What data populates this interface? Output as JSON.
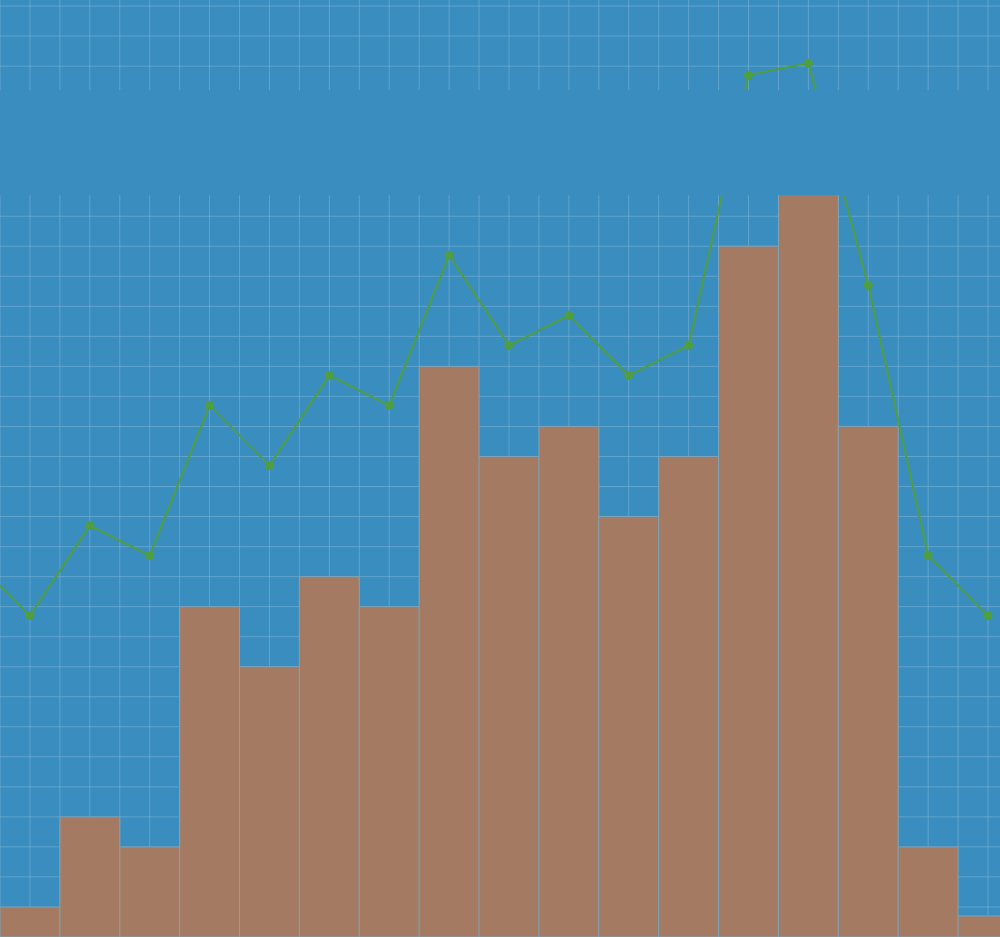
{
  "colors": {
    "background": "#3a8dbf",
    "grid": "#7fb5d8",
    "bar": "#a57a62",
    "line": "#4f9e3f",
    "band": "#3a8dbf"
  },
  "chart_data": {
    "type": "bar",
    "title": "",
    "xlabel": "",
    "ylabel": "",
    "grid": true,
    "legend": "none",
    "x": [
      0,
      1,
      2,
      3,
      4,
      5,
      6,
      7,
      8,
      9,
      10,
      11,
      12,
      13,
      14,
      15,
      16
    ],
    "xlim": [
      -0.5,
      16.2
    ],
    "ylim": [
      0,
      31.2
    ],
    "bars": {
      "width": 1,
      "values": [
        1,
        4,
        3,
        11,
        9,
        12,
        11,
        19,
        16,
        17,
        14,
        16,
        23,
        26,
        17,
        3,
        0.7
      ]
    },
    "line": {
      "values": [
        10.7,
        13.7,
        12.7,
        17.7,
        15.7,
        18.7,
        17.7,
        22.7,
        19.7,
        20.7,
        18.7,
        19.7,
        28.7,
        29.1,
        21.7,
        12.7,
        10.7
      ]
    },
    "occluding_band": {
      "y_range": [
        24.7,
        28.2
      ]
    }
  }
}
